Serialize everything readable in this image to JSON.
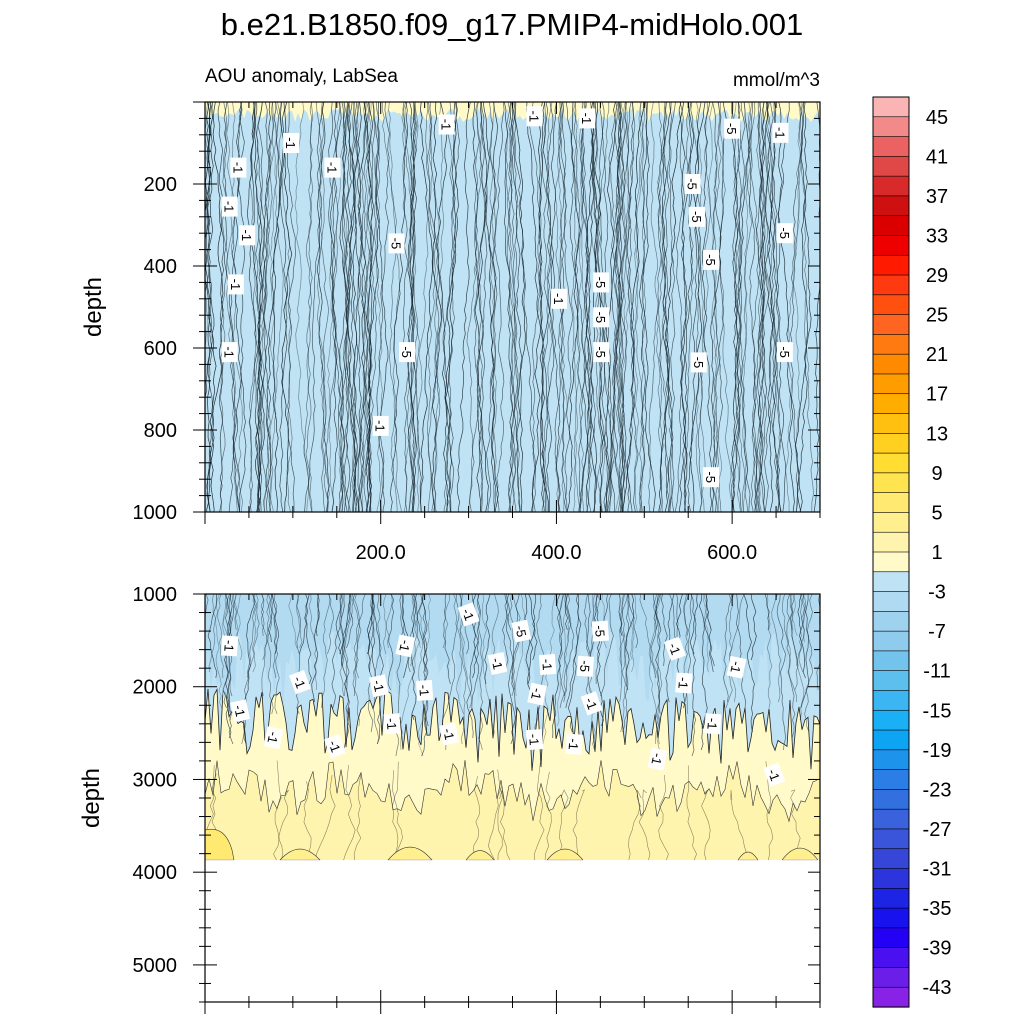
{
  "title": "b.e21.B1850.f09_g17.PMIP4-midHolo.001",
  "subtitle_left": "AOU anomaly, LabSea",
  "subtitle_right": "mmol/m^3",
  "chart_data": [
    {
      "type": "heatmap",
      "panel": "upper",
      "ylabel": "depth",
      "xlim": [
        0,
        700
      ],
      "ylim": [
        1000,
        0
      ],
      "y_reversed": true,
      "xticks": [
        200,
        400,
        600
      ],
      "xtick_labels": [
        "200.0",
        "400.0",
        "600.0"
      ],
      "yticks": [
        200,
        400,
        600,
        800,
        1000
      ],
      "ytick_labels": [
        "200",
        "400",
        "600",
        "800",
        "1000"
      ],
      "contour_labels": [
        {
          "x": 275,
          "y": 55,
          "v": "-1"
        },
        {
          "x": 375,
          "y": 35,
          "v": "-1"
        },
        {
          "x": 435,
          "y": 40,
          "v": "-1"
        },
        {
          "x": 600,
          "y": 65,
          "v": "-5"
        },
        {
          "x": 655,
          "y": 75,
          "v": "-1"
        },
        {
          "x": 98,
          "y": 100,
          "v": "-1"
        },
        {
          "x": 38,
          "y": 160,
          "v": "-1"
        },
        {
          "x": 145,
          "y": 160,
          "v": "-1"
        },
        {
          "x": 555,
          "y": 200,
          "v": "-5"
        },
        {
          "x": 28,
          "y": 255,
          "v": "-1"
        },
        {
          "x": 560,
          "y": 280,
          "v": "-5"
        },
        {
          "x": 48,
          "y": 325,
          "v": "-1"
        },
        {
          "x": 218,
          "y": 345,
          "v": "-5"
        },
        {
          "x": 660,
          "y": 320,
          "v": "-5"
        },
        {
          "x": 576,
          "y": 385,
          "v": "-5"
        },
        {
          "x": 35,
          "y": 445,
          "v": "-1"
        },
        {
          "x": 451,
          "y": 440,
          "v": "-5"
        },
        {
          "x": 403,
          "y": 480,
          "v": "-1"
        },
        {
          "x": 451,
          "y": 525,
          "v": "-5"
        },
        {
          "x": 28,
          "y": 610,
          "v": "-1"
        },
        {
          "x": 230,
          "y": 610,
          "v": "-5"
        },
        {
          "x": 451,
          "y": 610,
          "v": "-5"
        },
        {
          "x": 562,
          "y": 635,
          "v": "-5"
        },
        {
          "x": 660,
          "y": 610,
          "v": "-5"
        },
        {
          "x": 200,
          "y": 790,
          "v": "-1"
        },
        {
          "x": 576,
          "y": 915,
          "v": "-5"
        }
      ]
    },
    {
      "type": "heatmap",
      "panel": "lower",
      "ylabel": "depth",
      "xlim": [
        0,
        700
      ],
      "ylim": [
        5400,
        1000
      ],
      "y_reversed": true,
      "yticks": [
        1000,
        2000,
        3000,
        4000,
        5000
      ],
      "ytick_labels": [
        "1000",
        "2000",
        "3000",
        "4000",
        "5000"
      ],
      "data_bottom_depth": 3870,
      "contour_labels": [
        {
          "x": 300,
          "y": 1220,
          "v": "-1"
        },
        {
          "x": 360,
          "y": 1400,
          "v": "-5"
        },
        {
          "x": 450,
          "y": 1400,
          "v": "-5"
        },
        {
          "x": 28,
          "y": 1560,
          "v": "-1"
        },
        {
          "x": 228,
          "y": 1560,
          "v": "-1"
        },
        {
          "x": 535,
          "y": 1590,
          "v": "-1"
        },
        {
          "x": 333,
          "y": 1750,
          "v": "-1"
        },
        {
          "x": 390,
          "y": 1760,
          "v": "-1"
        },
        {
          "x": 433,
          "y": 1780,
          "v": "-5"
        },
        {
          "x": 605,
          "y": 1790,
          "v": "-1"
        },
        {
          "x": 108,
          "y": 1950,
          "v": "-1"
        },
        {
          "x": 198,
          "y": 1990,
          "v": "-1"
        },
        {
          "x": 250,
          "y": 2040,
          "v": "-1"
        },
        {
          "x": 545,
          "y": 1960,
          "v": "-1"
        },
        {
          "x": 378,
          "y": 2080,
          "v": "-1"
        },
        {
          "x": 440,
          "y": 2180,
          "v": "-1"
        },
        {
          "x": 40,
          "y": 2260,
          "v": "-1"
        },
        {
          "x": 213,
          "y": 2400,
          "v": "-1"
        },
        {
          "x": 578,
          "y": 2400,
          "v": "-1"
        },
        {
          "x": 78,
          "y": 2550,
          "v": "-1"
        },
        {
          "x": 148,
          "y": 2640,
          "v": "-1"
        },
        {
          "x": 278,
          "y": 2510,
          "v": "-1"
        },
        {
          "x": 375,
          "y": 2570,
          "v": "-1"
        },
        {
          "x": 420,
          "y": 2620,
          "v": "-1"
        },
        {
          "x": 515,
          "y": 2780,
          "v": "-1"
        },
        {
          "x": 648,
          "y": 2950,
          "v": "-1"
        }
      ]
    }
  ],
  "colorbar": {
    "labels": [
      "45",
      "41",
      "37",
      "33",
      "29",
      "25",
      "21",
      "17",
      "13",
      "9",
      "5",
      "1",
      "-3",
      "-7",
      "-11",
      "-15",
      "-19",
      "-23",
      "-27",
      "-31",
      "-35",
      "-39",
      "-43"
    ],
    "colors": [
      "#fbb4b4",
      "#f28a8a",
      "#ea6262",
      "#e04848",
      "#d82a2a",
      "#cf1010",
      "#da0000",
      "#ee0000",
      "#ff1a00",
      "#ff3a10",
      "#ff5010",
      "#ff6520",
      "#ff7a10",
      "#ff8a00",
      "#ff9c00",
      "#ffae00",
      "#ffc010",
      "#ffd020",
      "#ffdd33",
      "#ffe34f",
      "#ffe970",
      "#ffef8f",
      "#fff4ad",
      "#fffac8",
      "#bfe2f4",
      "#b0daf1",
      "#9fd2ee",
      "#8ecbed",
      "#72c4ec",
      "#5cbfee",
      "#3cb6f2",
      "#1bb0f6",
      "#0ea4f4",
      "#1e93ec",
      "#2a7ee6",
      "#3270e0",
      "#3a62dc",
      "#3a54da",
      "#3546d8",
      "#2c34dc",
      "#1e24e4",
      "#1812ee",
      "#2400f4",
      "#4a10f0",
      "#6a1ee8",
      "#8822e6"
    ]
  },
  "fill_colors": {
    "blue_main": "#bfe2f4",
    "blue_deep": "#a7d6f0",
    "yellow_pale": "#fffac8",
    "yellow_mid": "#fff4ad",
    "yellow_warm": "#ffef8f",
    "yellow_strong": "#ffe970"
  }
}
